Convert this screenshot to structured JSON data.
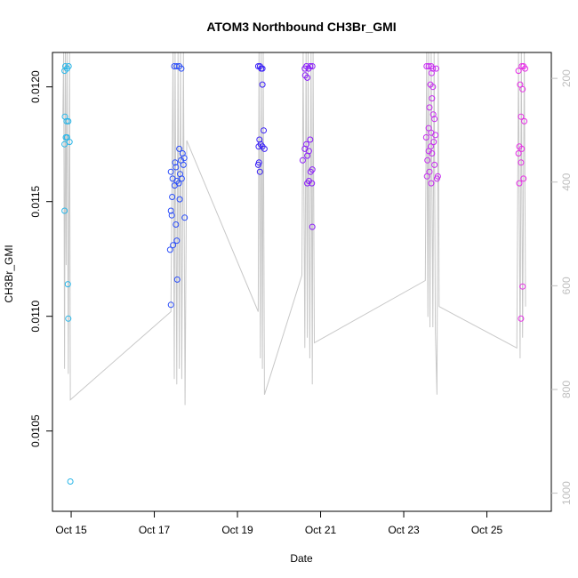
{
  "chart_data": {
    "type": "scatter",
    "title": "ATOM3 Northbound CH3Br_GMI",
    "xlabel": "Date",
    "ylabel": "CH3Br_GMI",
    "x_unit": "days (October 2017)",
    "xlim": [
      14.45,
      26.45
    ],
    "ylim": [
      0.01015,
      0.01215
    ],
    "x_ticks": [
      {
        "value": 14.9,
        "label": "Oct 15"
      },
      {
        "value": 16.9,
        "label": "Oct 17"
      },
      {
        "value": 18.9,
        "label": "Oct 19"
      },
      {
        "value": 20.9,
        "label": "Oct 21"
      },
      {
        "value": 22.9,
        "label": "Oct 23"
      },
      {
        "value": 24.9,
        "label": "Oct 25"
      }
    ],
    "y_ticks": [
      {
        "value": 0.0105,
        "label": "0.0105"
      },
      {
        "value": 0.011,
        "label": "0.0110"
      },
      {
        "value": 0.0115,
        "label": "0.0115"
      },
      {
        "value": 0.012,
        "label": "0.0120"
      }
    ],
    "y2_axis": {
      "range": [
        150,
        1035
      ],
      "inverted": true,
      "ticks": [
        200,
        400,
        600,
        800,
        1000
      ],
      "color": "#bfbfbf"
    },
    "grid": false,
    "legend": "none",
    "marker": "open-circle",
    "color_gradient": [
      "#29b6e8",
      "#2a4dfa",
      "#8b1dfa",
      "#e62ee6"
    ],
    "flights": [
      {
        "name": "Oct 15",
        "color": "#29b6e8",
        "points": [
          [
            14.74,
            0.01207
          ],
          [
            14.76,
            0.01209
          ],
          [
            14.8,
            0.01208
          ],
          [
            14.84,
            0.01209
          ],
          [
            14.75,
            0.01187
          ],
          [
            14.79,
            0.01185
          ],
          [
            14.83,
            0.01185
          ],
          [
            14.77,
            0.01178
          ],
          [
            14.8,
            0.01178
          ],
          [
            14.74,
            0.01175
          ],
          [
            14.86,
            0.01176
          ],
          [
            14.74,
            0.01146
          ],
          [
            14.82,
            0.01114
          ],
          [
            14.83,
            0.01099
          ],
          [
            14.88,
            0.01028
          ]
        ]
      },
      {
        "name": "Oct 17",
        "color": "#2a4dfa",
        "points": [
          [
            17.38,
            0.01209
          ],
          [
            17.44,
            0.01209
          ],
          [
            17.5,
            0.01209
          ],
          [
            17.55,
            0.01208
          ],
          [
            17.5,
            0.01173
          ],
          [
            17.58,
            0.01171
          ],
          [
            17.62,
            0.01169
          ],
          [
            17.54,
            0.01168
          ],
          [
            17.4,
            0.01167
          ],
          [
            17.42,
            0.01165
          ],
          [
            17.6,
            0.01166
          ],
          [
            17.3,
            0.01163
          ],
          [
            17.52,
            0.01162
          ],
          [
            17.34,
            0.0116
          ],
          [
            17.44,
            0.01159
          ],
          [
            17.49,
            0.01158
          ],
          [
            17.56,
            0.0116
          ],
          [
            17.39,
            0.01157
          ],
          [
            17.33,
            0.01152
          ],
          [
            17.51,
            0.01151
          ],
          [
            17.3,
            0.01146
          ],
          [
            17.32,
            0.01144
          ],
          [
            17.63,
            0.01143
          ],
          [
            17.42,
            0.0114
          ],
          [
            17.44,
            0.01133
          ],
          [
            17.35,
            0.01131
          ],
          [
            17.28,
            0.01129
          ],
          [
            17.45,
            0.01116
          ],
          [
            17.3,
            0.01105
          ]
        ]
      },
      {
        "name": "Oct 19",
        "color": "#3a20f8",
        "points": [
          [
            19.4,
            0.01209
          ],
          [
            19.44,
            0.01209
          ],
          [
            19.47,
            0.01208
          ],
          [
            19.5,
            0.01208
          ],
          [
            19.5,
            0.01201
          ],
          [
            19.53,
            0.01181
          ],
          [
            19.43,
            0.01177
          ],
          [
            19.46,
            0.01175
          ],
          [
            19.41,
            0.01174
          ],
          [
            19.5,
            0.01174
          ],
          [
            19.55,
            0.01173
          ],
          [
            19.42,
            0.01167
          ],
          [
            19.4,
            0.01166
          ],
          [
            19.44,
            0.01163
          ]
        ]
      },
      {
        "name": "Oct 21",
        "color": "#8b1dfa",
        "points": [
          [
            20.52,
            0.01208
          ],
          [
            20.56,
            0.01209
          ],
          [
            20.61,
            0.01208
          ],
          [
            20.65,
            0.01209
          ],
          [
            20.7,
            0.01209
          ],
          [
            20.58,
            0.01204
          ],
          [
            20.53,
            0.01205
          ],
          [
            20.65,
            0.01177
          ],
          [
            20.56,
            0.01175
          ],
          [
            20.52,
            0.01173
          ],
          [
            20.62,
            0.01172
          ],
          [
            20.58,
            0.0117
          ],
          [
            20.47,
            0.01168
          ],
          [
            20.7,
            0.01164
          ],
          [
            20.66,
            0.01163
          ],
          [
            20.62,
            0.01159
          ],
          [
            20.69,
            0.01158
          ],
          [
            20.58,
            0.01158
          ],
          [
            20.7,
            0.01139
          ]
        ]
      },
      {
        "name": "Oct 23",
        "color": "#c72bf0",
        "points": [
          [
            23.45,
            0.01209
          ],
          [
            23.5,
            0.01209
          ],
          [
            23.56,
            0.01209
          ],
          [
            23.6,
            0.01208
          ],
          [
            23.68,
            0.01208
          ],
          [
            23.57,
            0.01206
          ],
          [
            23.54,
            0.01201
          ],
          [
            23.6,
            0.012
          ],
          [
            23.58,
            0.01195
          ],
          [
            23.52,
            0.01191
          ],
          [
            23.61,
            0.01188
          ],
          [
            23.64,
            0.01186
          ],
          [
            23.5,
            0.01182
          ],
          [
            23.56,
            0.0118
          ],
          [
            23.66,
            0.01179
          ],
          [
            23.44,
            0.01178
          ],
          [
            23.62,
            0.01176
          ],
          [
            23.55,
            0.01174
          ],
          [
            23.5,
            0.01172
          ],
          [
            23.58,
            0.01171
          ],
          [
            23.47,
            0.01168
          ],
          [
            23.64,
            0.01166
          ],
          [
            23.52,
            0.01163
          ],
          [
            23.72,
            0.01161
          ],
          [
            23.46,
            0.01161
          ],
          [
            23.7,
            0.0116
          ],
          [
            23.56,
            0.01158
          ]
        ]
      },
      {
        "name": "Oct 25",
        "color": "#e62ee6",
        "points": [
          [
            25.66,
            0.01207
          ],
          [
            25.74,
            0.01209
          ],
          [
            25.78,
            0.01209
          ],
          [
            25.82,
            0.01208
          ],
          [
            25.7,
            0.01201
          ],
          [
            25.76,
            0.01199
          ],
          [
            25.72,
            0.01187
          ],
          [
            25.8,
            0.01185
          ],
          [
            25.68,
            0.01174
          ],
          [
            25.74,
            0.01173
          ],
          [
            25.66,
            0.01171
          ],
          [
            25.72,
            0.01167
          ],
          [
            25.78,
            0.0116
          ],
          [
            25.68,
            0.01158
          ],
          [
            25.76,
            0.01113
          ],
          [
            25.72,
            0.01099
          ]
        ]
      }
    ],
    "altitude_line": {
      "color": "#c8c8c8",
      "y_axis": "secondary",
      "points": [
        [
          14.7,
          270
        ],
        [
          14.72,
          150
        ],
        [
          14.74,
          760
        ],
        [
          14.76,
          150
        ],
        [
          14.78,
          560
        ],
        [
          14.8,
          150
        ],
        [
          14.83,
          770
        ],
        [
          14.86,
          150
        ],
        [
          14.88,
          820
        ],
        [
          17.3,
          650
        ],
        [
          17.35,
          150
        ],
        [
          17.38,
          780
        ],
        [
          17.4,
          150
        ],
        [
          17.44,
          790
        ],
        [
          17.47,
          150
        ],
        [
          17.5,
          760
        ],
        [
          17.53,
          150
        ],
        [
          17.56,
          780
        ],
        [
          17.6,
          150
        ],
        [
          17.64,
          830
        ],
        [
          17.68,
          320
        ],
        [
          19.4,
          650
        ],
        [
          19.42,
          150
        ],
        [
          19.45,
          740
        ],
        [
          19.47,
          150
        ],
        [
          19.5,
          760
        ],
        [
          19.52,
          150
        ],
        [
          19.55,
          810
        ],
        [
          20.45,
          580
        ],
        [
          20.48,
          150
        ],
        [
          20.52,
          720
        ],
        [
          20.55,
          150
        ],
        [
          20.58,
          700
        ],
        [
          20.6,
          150
        ],
        [
          20.64,
          740
        ],
        [
          20.67,
          150
        ],
        [
          20.7,
          790
        ],
        [
          20.72,
          150
        ],
        [
          20.75,
          710
        ],
        [
          23.42,
          590
        ],
        [
          23.45,
          150
        ],
        [
          23.48,
          660
        ],
        [
          23.5,
          150
        ],
        [
          23.53,
          680
        ],
        [
          23.56,
          150
        ],
        [
          23.6,
          680
        ],
        [
          23.63,
          150
        ],
        [
          23.66,
          690
        ],
        [
          23.7,
          810
        ],
        [
          23.73,
          150
        ],
        [
          23.75,
          640
        ],
        [
          25.62,
          720
        ],
        [
          25.66,
          150
        ],
        [
          25.7,
          740
        ],
        [
          25.73,
          150
        ],
        [
          25.76,
          700
        ],
        [
          25.8,
          150
        ],
        [
          25.83,
          640
        ]
      ]
    }
  }
}
